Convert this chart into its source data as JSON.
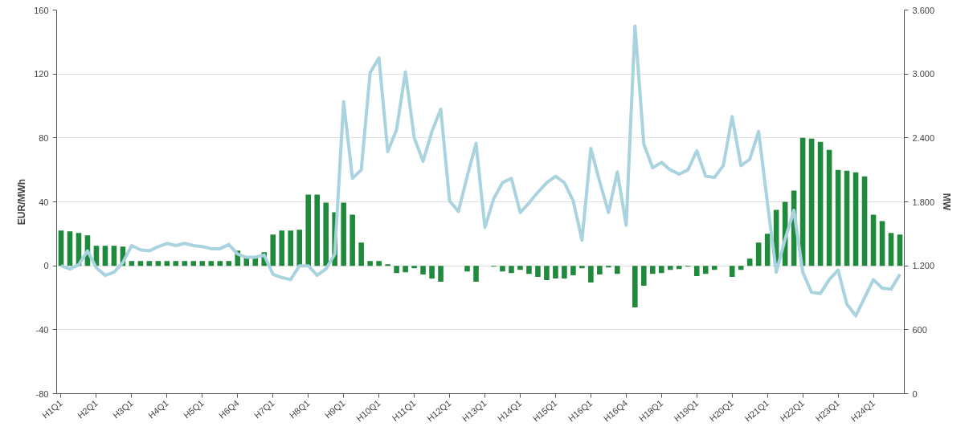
{
  "chart_data": {
    "type": "bar",
    "ylabel": "EUR/MWh",
    "y2label": "MW",
    "categories": [
      "H1Q1",
      null,
      null,
      null,
      "H2Q1",
      null,
      null,
      null,
      "H3Q1",
      null,
      null,
      null,
      "H4Q1",
      null,
      null,
      null,
      "H5Q1",
      null,
      null,
      null,
      "H6Q4",
      null,
      null,
      null,
      "H7Q1",
      null,
      null,
      null,
      "H8Q1",
      null,
      null,
      null,
      "H9Q1",
      null,
      null,
      null,
      "H10Q1",
      null,
      null,
      null,
      "H11Q1",
      null,
      null,
      null,
      "H12Q1",
      null,
      null,
      null,
      "H13Q1",
      null,
      null,
      null,
      "H14Q1",
      null,
      null,
      null,
      "H15Q1",
      null,
      null,
      null,
      "H16Q1",
      null,
      null,
      null,
      "H16Q4",
      null,
      null,
      null,
      "H18Q1",
      null,
      null,
      null,
      "H19Q1",
      null,
      null,
      null,
      "H20Q1",
      null,
      null,
      null,
      "H21Q1",
      null,
      null,
      null,
      "H22Q1",
      null,
      null,
      null,
      "H23Q1",
      null,
      null,
      null,
      "H24Q1",
      null,
      null,
      null
    ],
    "series": [
      {
        "color": "#1f8a3b",
        "values": [
          22,
          21.5,
          20.5,
          19,
          12.5,
          12.5,
          12.5,
          12,
          3,
          3,
          3,
          3,
          3,
          3,
          3,
          3,
          3,
          3,
          3,
          3,
          9.5,
          5.5,
          5.5,
          8.5,
          19.5,
          22,
          22,
          22.5,
          44.5,
          44.5,
          39.5,
          33.5,
          39.5,
          32,
          14.5,
          3,
          3,
          1,
          -4.5,
          -4,
          -1.5,
          -5.5,
          -8,
          -10,
          0,
          0,
          -3.5,
          -10,
          0,
          -0.5,
          -3.5,
          -4.5,
          -2.5,
          -5,
          -7,
          -9,
          -8,
          -8,
          -6,
          -1.5,
          -10.5,
          -5.5,
          -1,
          -5,
          0,
          -26,
          -12.5,
          -5,
          -4.5,
          -2.5,
          -2,
          -0.5,
          -6.5,
          -5,
          -2.5,
          0,
          -7,
          -2.5,
          4.5,
          14.5,
          20,
          35,
          40,
          47,
          80,
          79.5,
          77.5,
          72.5,
          60,
          59.5,
          58.5,
          56,
          32,
          28,
          20.5,
          19.5
        ]
      },
      {
        "type": "line",
        "axis": "y2",
        "color": "#a9d3df",
        "values": [
          1200,
          1170,
          1210,
          1340,
          1180,
          1110,
          1140,
          1230,
          1390,
          1350,
          1340,
          1380,
          1410,
          1390,
          1410,
          1390,
          1380,
          1360,
          1360,
          1400,
          1310,
          1280,
          1280,
          1300,
          1120,
          1090,
          1070,
          1200,
          1200,
          1110,
          1170,
          1310,
          2740,
          2020,
          2100,
          3010,
          3150,
          2270,
          2480,
          3020,
          2400,
          2180,
          2460,
          2670,
          1810,
          1710,
          2040,
          2350,
          1560,
          1830,
          1980,
          2020,
          1700,
          1790,
          1890,
          1980,
          2040,
          1980,
          1810,
          1440,
          2300,
          1990,
          1700,
          2080,
          1580,
          3450,
          2340,
          2120,
          2170,
          2100,
          2060,
          2100,
          2280,
          2040,
          2030,
          2140,
          2600,
          2140,
          2200,
          2460,
          1790,
          1140,
          1450,
          1720,
          1140,
          950,
          940,
          1070,
          1160,
          840,
          730,
          900,
          1070,
          990,
          980,
          1120
        ]
      }
    ],
    "ylim": [
      -80,
      160
    ],
    "yticks": [
      -80,
      -40,
      0,
      40,
      80,
      120,
      160
    ],
    "y2lim": [
      0,
      3600
    ],
    "y2ticks": [
      0,
      {
        "value": 600,
        "label": "600"
      },
      {
        "value": 1200,
        "label": "1.200"
      },
      {
        "value": 1800,
        "label": "1.800"
      },
      {
        "value": 2400,
        "label": "2.400"
      },
      {
        "value": 3000,
        "label": "3.000"
      },
      {
        "value": 3600,
        "label": "3.600"
      }
    ],
    "grid": "y"
  }
}
